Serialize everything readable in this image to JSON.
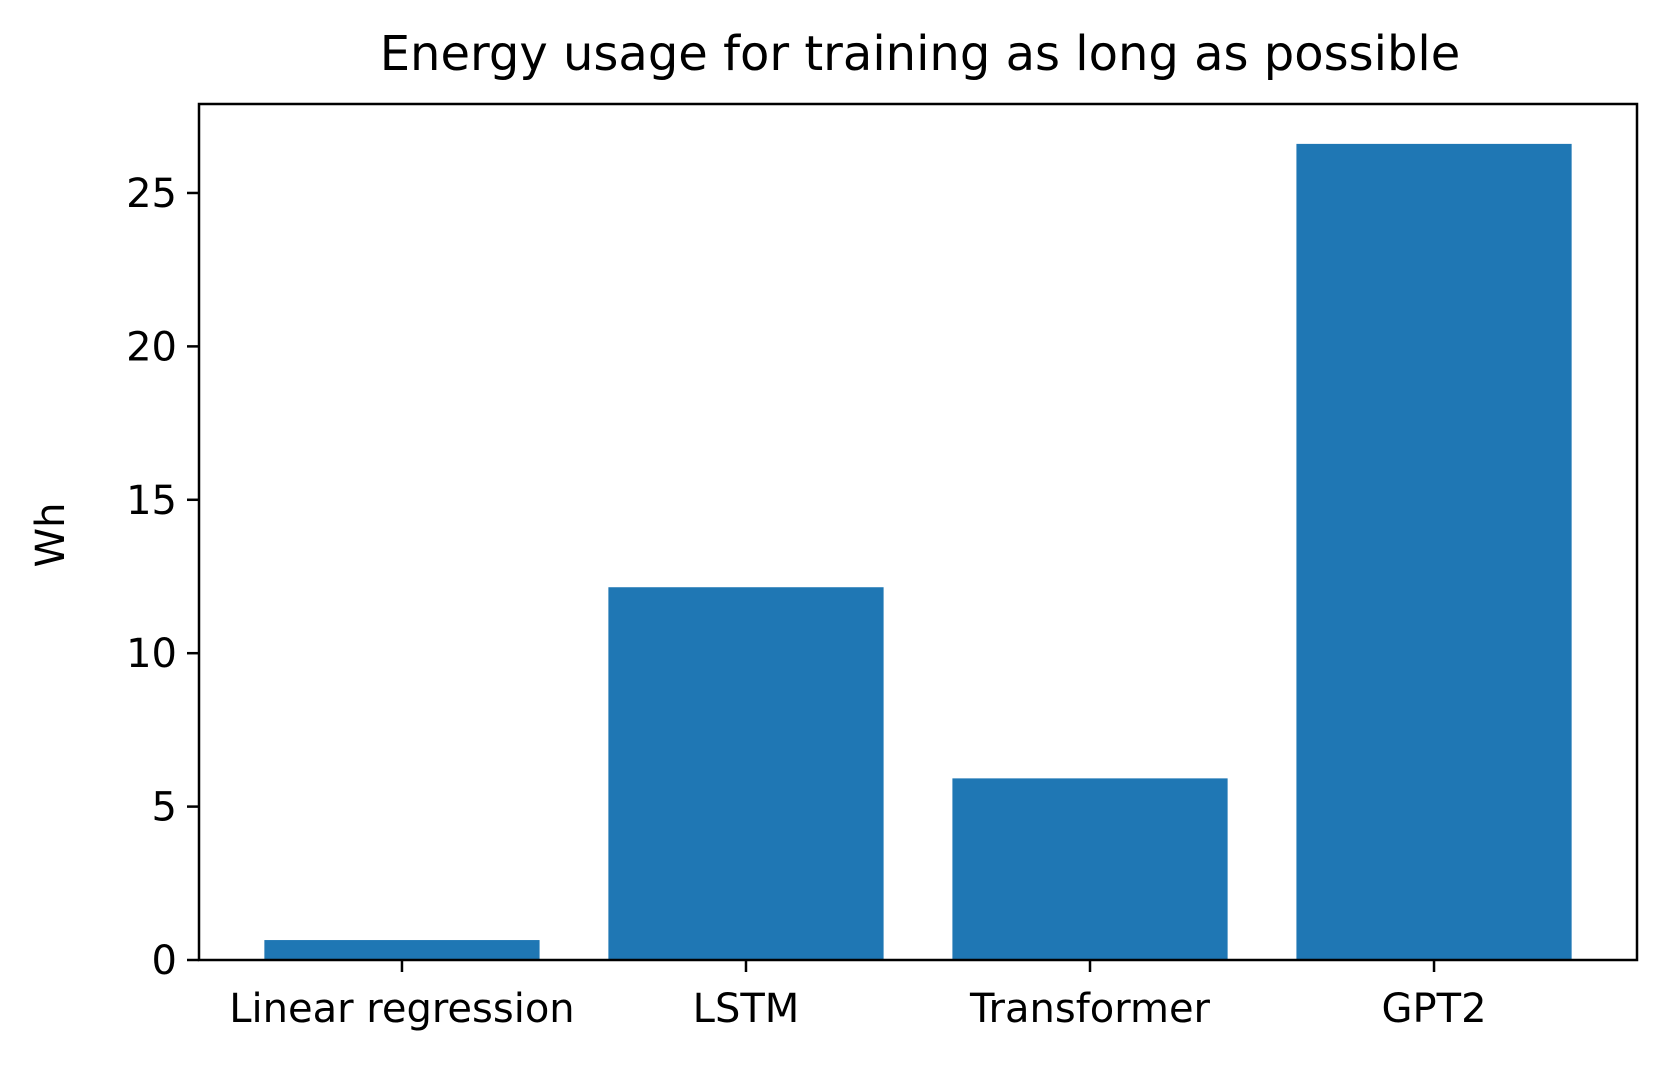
{
  "chart_data": {
    "type": "bar",
    "title": "Energy usage for training as long as possible",
    "xlabel": "",
    "ylabel": "Wh",
    "categories": [
      "Linear regression",
      "LSTM",
      "Transformer",
      "GPT2"
    ],
    "values": [
      0.65,
      12.15,
      5.92,
      26.6
    ],
    "ylim": [
      0,
      27.9
    ],
    "yticks": [
      0,
      5,
      10,
      15,
      20,
      25
    ],
    "grid": false,
    "bar_color": "#1f77b4"
  }
}
